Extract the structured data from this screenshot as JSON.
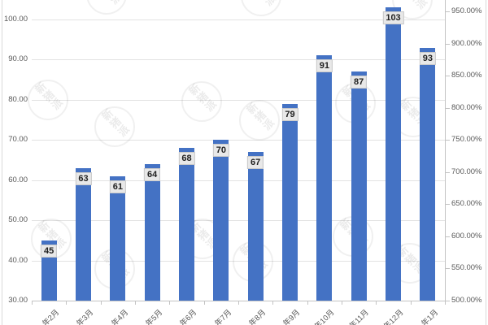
{
  "watermark": {
    "text": "新猪派"
  },
  "chart_data": {
    "type": "bar",
    "title": "",
    "xlabel": "",
    "ylabel": "",
    "categories": [
      "年2月",
      "年3月",
      "年4月",
      "年5月",
      "年6月",
      "年7月",
      "年8月",
      "年9月",
      "年10月",
      "年11月",
      "年12月",
      "年1月"
    ],
    "values": [
      45,
      63,
      61,
      64,
      68,
      70,
      67,
      79,
      91,
      87,
      103,
      93
    ],
    "data_labels": [
      "45",
      "63",
      "61",
      "64",
      "68",
      "70",
      "67",
      "79",
      "91",
      "87",
      "103",
      "93"
    ],
    "bar_color": "#4472C4",
    "data_label_bg": "#e8e8e8",
    "grid": "horizontal",
    "legend": "none",
    "left_axis": {
      "tick_labels": [
        "100.00",
        "90.00",
        "80.00",
        "70.00",
        "60.00",
        "50.00",
        "40.00",
        "30.00"
      ],
      "min": 30,
      "max": 100
    },
    "right_axis": {
      "tick_labels": [
        "950.00%",
        "900.00%",
        "850.00%",
        "800.00%",
        "750.00%",
        "700.00%",
        "650.00%",
        "600.00%",
        "550.00%",
        "500.00%"
      ],
      "min": 500,
      "max": 950,
      "unit": "%"
    }
  }
}
